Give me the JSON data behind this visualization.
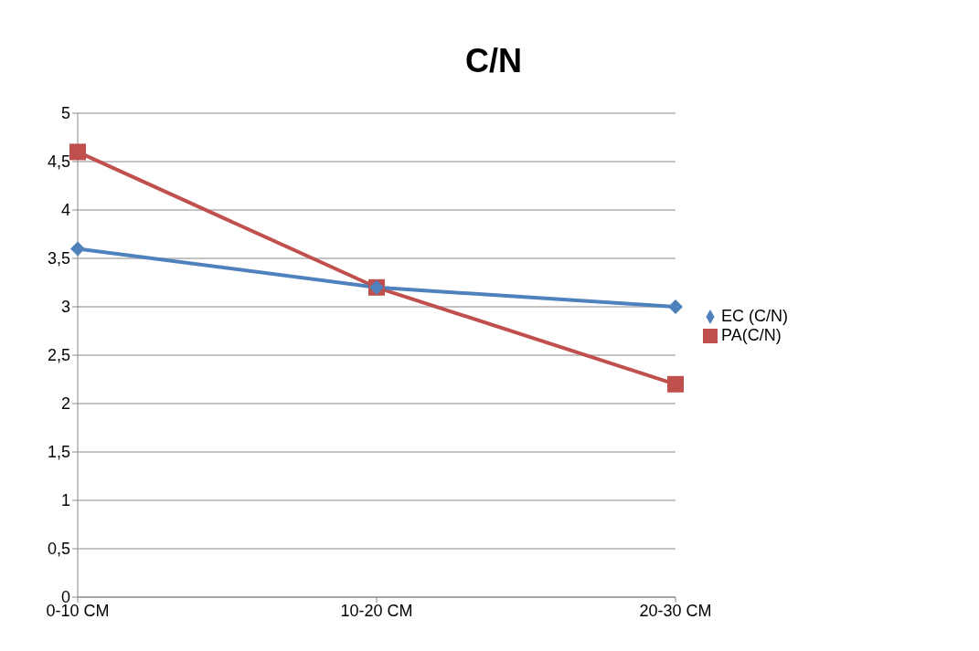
{
  "chart_data": {
    "type": "line",
    "title": "C/N",
    "categories": [
      "0-10 CM",
      "10-20 CM",
      "20-30 CM"
    ],
    "series": [
      {
        "name": "PA(C/N)",
        "color": "#c0504d",
        "marker": "square",
        "values": [
          4.6,
          3.2,
          2.2
        ]
      },
      {
        "name": "EC (C/N)",
        "color": "#4f81bd",
        "marker": "diamond",
        "values": [
          3.6,
          3.2,
          3.0
        ]
      }
    ],
    "ylim": [
      0,
      5
    ],
    "yticks": [
      0,
      {
        "value": 0.5,
        "label": "0,5"
      },
      1,
      {
        "value": 1.5,
        "label": "1,5"
      },
      2,
      {
        "value": 2.5,
        "label": "2,5"
      },
      3,
      {
        "value": 3.5,
        "label": "3,5"
      },
      4,
      {
        "value": 4.5,
        "label": "4,5"
      },
      5
    ],
    "grid": "y",
    "legend": "right",
    "line_style": "solid"
  }
}
